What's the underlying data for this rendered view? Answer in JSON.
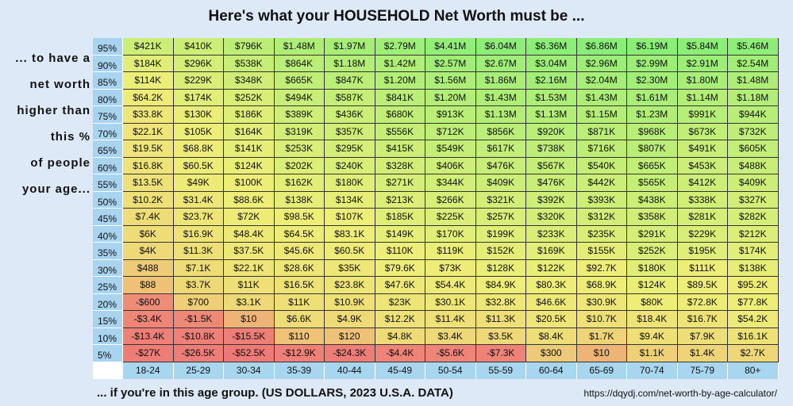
{
  "title": "Here's what your HOUSEHOLD Net Worth must be ...",
  "side_label": [
    "... to have a",
    "net worth",
    "higher than",
    "this %",
    "of people",
    "your age..."
  ],
  "table": {
    "columns": [
      "18-24",
      "25-29",
      "30-34",
      "35-39",
      "40-44",
      "45-49",
      "50-54",
      "55-59",
      "60-64",
      "65-69",
      "70-74",
      "75-79",
      "80+"
    ],
    "rows": [
      {
        "percentile": "95%",
        "cells": [
          "$421K",
          "$410K",
          "$796K",
          "$1.48M",
          "$1.97M",
          "$2.79M",
          "$4.41M",
          "$6.04M",
          "$6.36M",
          "$6.86M",
          "$6.19M",
          "$5.84M",
          "$5.46M"
        ]
      },
      {
        "percentile": "90%",
        "cells": [
          "$184K",
          "$296K",
          "$538K",
          "$864K",
          "$1.18M",
          "$1.42M",
          "$2.57M",
          "$2.67M",
          "$3.04M",
          "$2.96M",
          "$2.99M",
          "$2.91M",
          "$2.54M"
        ]
      },
      {
        "percentile": "85%",
        "cells": [
          "$114K",
          "$229K",
          "$348K",
          "$665K",
          "$847K",
          "$1.20M",
          "$1.56M",
          "$1.86M",
          "$2.16M",
          "$2.04M",
          "$2.30M",
          "$1.80M",
          "$1.48M"
        ]
      },
      {
        "percentile": "80%",
        "cells": [
          "$64.2K",
          "$174K",
          "$252K",
          "$494K",
          "$587K",
          "$841K",
          "$1.20M",
          "$1.43M",
          "$1.53M",
          "$1.43M",
          "$1.61M",
          "$1.14M",
          "$1.18M"
        ]
      },
      {
        "percentile": "75%",
        "cells": [
          "$33.8K",
          "$130K",
          "$186K",
          "$389K",
          "$436K",
          "$680K",
          "$913K",
          "$1.13M",
          "$1.13M",
          "$1.15M",
          "$1.23M",
          "$991K",
          "$944K"
        ]
      },
      {
        "percentile": "70%",
        "cells": [
          "$22.1K",
          "$105K",
          "$164K",
          "$319K",
          "$357K",
          "$556K",
          "$712K",
          "$856K",
          "$920K",
          "$871K",
          "$968K",
          "$673K",
          "$732K"
        ]
      },
      {
        "percentile": "65%",
        "cells": [
          "$19.5K",
          "$68.8K",
          "$141K",
          "$253K",
          "$295K",
          "$415K",
          "$549K",
          "$617K",
          "$738K",
          "$716K",
          "$807K",
          "$491K",
          "$605K"
        ]
      },
      {
        "percentile": "60%",
        "cells": [
          "$16.8K",
          "$60.5K",
          "$124K",
          "$202K",
          "$240K",
          "$328K",
          "$406K",
          "$476K",
          "$567K",
          "$540K",
          "$665K",
          "$453K",
          "$488K"
        ]
      },
      {
        "percentile": "55%",
        "cells": [
          "$13.5K",
          "$49K",
          "$100K",
          "$162K",
          "$180K",
          "$271K",
          "$344K",
          "$409K",
          "$476K",
          "$442K",
          "$565K",
          "$412K",
          "$409K"
        ]
      },
      {
        "percentile": "50%",
        "cells": [
          "$10.2K",
          "$31.4K",
          "$88.6K",
          "$138K",
          "$134K",
          "$213K",
          "$266K",
          "$321K",
          "$392K",
          "$393K",
          "$438K",
          "$338K",
          "$327K"
        ]
      },
      {
        "percentile": "45%",
        "cells": [
          "$7.4K",
          "$23.7K",
          "$72K",
          "$98.5K",
          "$107K",
          "$185K",
          "$225K",
          "$257K",
          "$320K",
          "$312K",
          "$358K",
          "$281K",
          "$282K"
        ]
      },
      {
        "percentile": "40%",
        "cells": [
          "$6K",
          "$16.9K",
          "$48.4K",
          "$64.5K",
          "$83.1K",
          "$149K",
          "$170K",
          "$199K",
          "$233K",
          "$235K",
          "$291K",
          "$229K",
          "$212K"
        ]
      },
      {
        "percentile": "35%",
        "cells": [
          "$4K",
          "$11.3K",
          "$37.5K",
          "$45.6K",
          "$60.5K",
          "$110K",
          "$119K",
          "$152K",
          "$169K",
          "$155K",
          "$252K",
          "$195K",
          "$174K"
        ]
      },
      {
        "percentile": "30%",
        "cells": [
          "$488",
          "$7.1K",
          "$22.1K",
          "$28.6K",
          "$35K",
          "$79.6K",
          "$73K",
          "$128K",
          "$122K",
          "$92.7K",
          "$180K",
          "$111K",
          "$138K"
        ]
      },
      {
        "percentile": "25%",
        "cells": [
          "$88",
          "$3.7K",
          "$11K",
          "$16.5K",
          "$23.8K",
          "$47.6K",
          "$54.4K",
          "$84.9K",
          "$80.3K",
          "$68.9K",
          "$124K",
          "$89.5K",
          "$95.2K"
        ]
      },
      {
        "percentile": "20%",
        "cells": [
          "-$600",
          "$700",
          "$3.1K",
          "$11K",
          "$10.9K",
          "$23K",
          "$30.1K",
          "$32.8K",
          "$46.6K",
          "$30.9K",
          "$80K",
          "$72.8K",
          "$77.8K"
        ]
      },
      {
        "percentile": "15%",
        "cells": [
          "-$3.4K",
          "-$1.5K",
          "$10",
          "$6.6K",
          "$4.9K",
          "$12.2K",
          "$11.4K",
          "$11.3K",
          "$20.5K",
          "$10.7K",
          "$18.4K",
          "$16.7K",
          "$54.2K"
        ]
      },
      {
        "percentile": "10%",
        "cells": [
          "-$13.4K",
          "-$10.8K",
          "-$15.5K",
          "$110",
          "$120",
          "$4.8K",
          "$3.4K",
          "$3.5K",
          "$8.4K",
          "$1.7K",
          "$9.4K",
          "$7.9K",
          "$16.1K"
        ]
      },
      {
        "percentile": "5%",
        "cells": [
          "-$27K",
          "-$26.5K",
          "-$52.5K",
          "-$12.9K",
          "-$24.3K",
          "-$4.4K",
          "-$5.6K",
          "-$7.3K",
          "$300",
          "$10",
          "$1.1K",
          "$1.4K",
          "$2.7K"
        ]
      }
    ]
  },
  "footer": "... if you're in this age group. (US DOLLARS, 2023 U.S.A. DATA)",
  "url": "https://dqydj.com/net-worth-by-age-calculator/"
}
